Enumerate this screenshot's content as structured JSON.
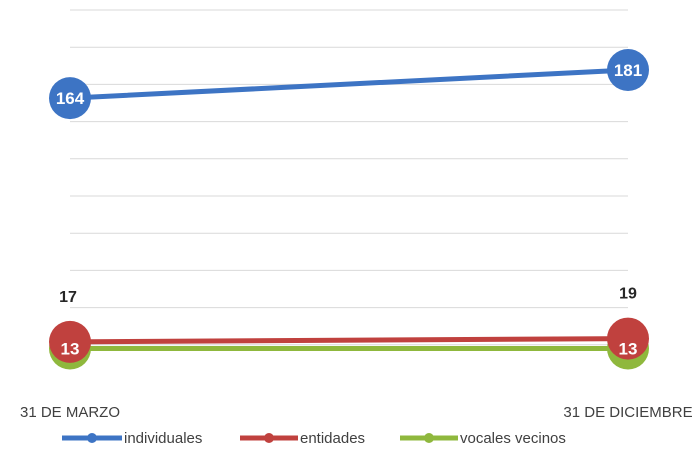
{
  "chart_data": {
    "type": "line",
    "categories": [
      "31 DE MARZO",
      "31 DE DICIEMBRE"
    ],
    "series": [
      {
        "name": "individuales",
        "values": [
          164,
          181
        ],
        "color": "#3d74c4",
        "labels": [
          "164",
          "181"
        ]
      },
      {
        "name": "entidades",
        "values": [
          17,
          19
        ],
        "color": "#c0413e",
        "labels": [
          "17",
          "19"
        ]
      },
      {
        "name": "vocales vecinos",
        "values": [
          13,
          13
        ],
        "color": "#8fb83d",
        "labels": [
          "13",
          "13"
        ]
      }
    ],
    "legend_position": "bottom",
    "grid": true,
    "y_axis_labels_visible": false
  }
}
